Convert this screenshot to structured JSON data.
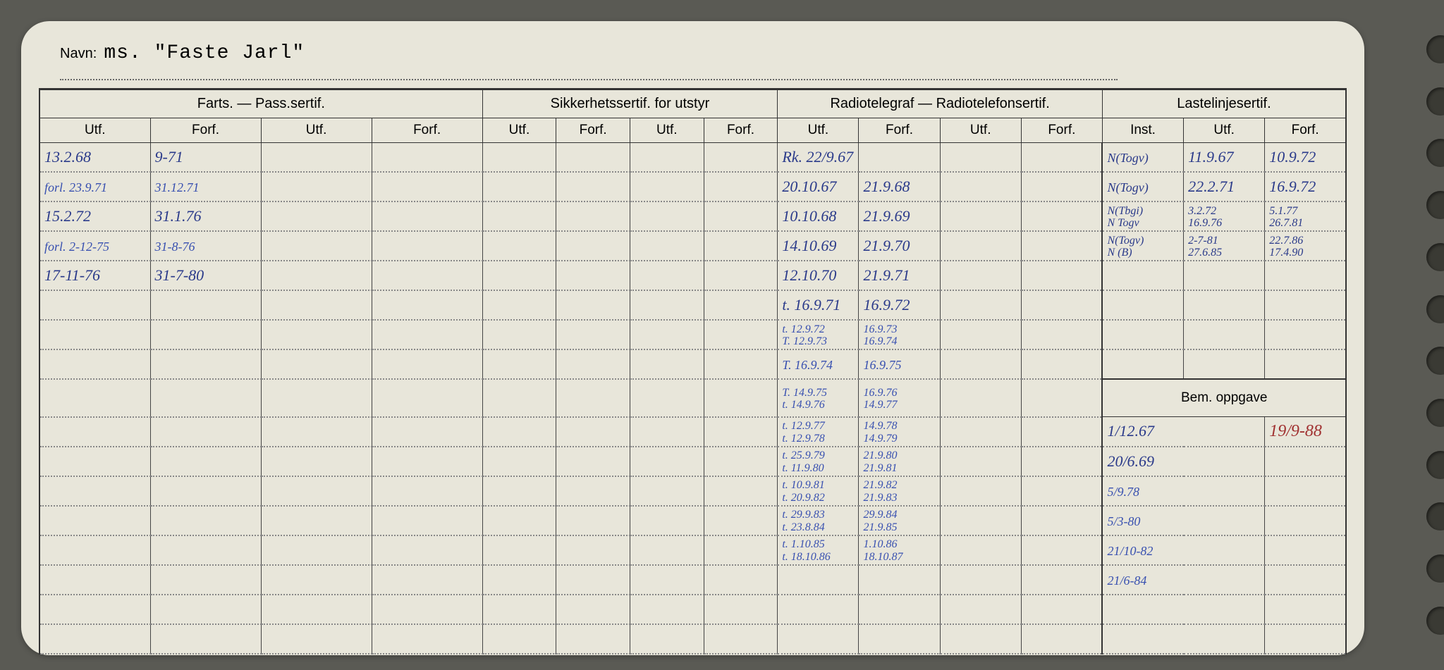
{
  "navn_label": "Navn:",
  "navn_value": "ms. \"Faste Jarl\"",
  "headers": {
    "group1": "Farts. — Pass.sertif.",
    "group2": "Sikkerhetssertif. for utstyr",
    "group3": "Radiotelegraf — Radiotelefonsertif.",
    "group4": "Lastelinjesertif.",
    "utf": "Utf.",
    "forf": "Forf.",
    "inst": "Inst.",
    "bem": "Bem. oppgave"
  },
  "farts": [
    {
      "utf": "13.2.68",
      "forf": "9-71"
    },
    {
      "utf": "forl. 23.9.71",
      "forf": "31.12.71"
    },
    {
      "utf": "15.2.72",
      "forf": "31.1.76"
    },
    {
      "utf": "forl. 2-12-75",
      "forf": "31-8-76"
    },
    {
      "utf": "17-11-76",
      "forf": "31-7-80"
    }
  ],
  "radio": [
    {
      "utf": "Rk. 22/9.67",
      "forf": ""
    },
    {
      "utf": "20.10.67",
      "forf": "21.9.68"
    },
    {
      "utf": "10.10.68",
      "forf": "21.9.69"
    },
    {
      "utf": "14.10.69",
      "forf": "21.9.70"
    },
    {
      "utf": "12.10.70",
      "forf": "21.9.71"
    },
    {
      "utf": "t. 16.9.71",
      "forf": "16.9.72"
    },
    {
      "utf": "t. 12.9.72",
      "forf": "16.9.73",
      "utf2": "T. 12.9.73",
      "forf2": "16.9.74"
    },
    {
      "utf": "T. 16.9.74",
      "forf": "16.9.75"
    },
    {
      "utf": "T. 14.9.75",
      "forf": "16.9.76",
      "utf2": "t. 14.9.76",
      "forf2": "14.9.77"
    },
    {
      "utf": "t. 12.9.77",
      "forf": "14.9.78",
      "utf2": "t. 12.9.78",
      "forf2": "14.9.79"
    },
    {
      "utf": "t. 25.9.79",
      "forf": "21.9.80",
      "utf2": "t. 11.9.80",
      "forf2": "21.9.81"
    },
    {
      "utf": "t. 10.9.81",
      "forf": "21.9.82",
      "utf2": "t. 20.9.82",
      "forf2": "21.9.83"
    },
    {
      "utf": "t. 29.9.83",
      "forf": "29.9.84",
      "utf2": "t. 23.8.84",
      "forf2": "21.9.85"
    },
    {
      "utf": "t. 1.10.85",
      "forf": "1.10.86",
      "utf2": "t. 18.10.86",
      "forf2": "18.10.87"
    }
  ],
  "laste": [
    {
      "inst": "N(Togv)",
      "utf": "11.9.67",
      "forf": "10.9.72"
    },
    {
      "inst": "N(Togv)",
      "utf": "22.2.71",
      "forf": "16.9.72"
    },
    {
      "inst": "N(Tbgi)",
      "utf": "3.2.72",
      "forf": "5.1.77",
      "inst2": "N Togv",
      "utf2": "16.9.76",
      "forf2": "26.7.81"
    },
    {
      "inst": "N(Togv)",
      "utf": "2-7-81",
      "forf": "22.7.86",
      "inst2": "N (B)",
      "utf2": "27.6.85",
      "forf2": "17.4.90"
    }
  ],
  "bem": [
    {
      "a": "1/12.67",
      "b": "19/9-88"
    },
    {
      "a": "20/6.69",
      "b": ""
    },
    {
      "a": "5/9.78",
      "b": ""
    },
    {
      "a": "5/3-80",
      "b": ""
    },
    {
      "a": "21/10-82",
      "b": ""
    },
    {
      "a": "21/6-84",
      "b": ""
    }
  ]
}
